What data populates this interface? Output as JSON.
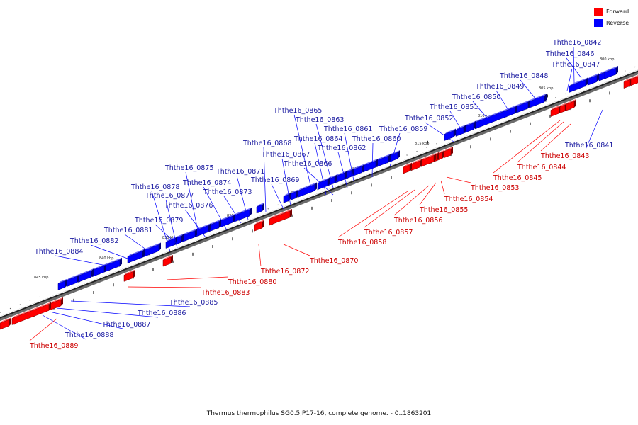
{
  "legend": {
    "forward_label": "Forward",
    "reverse_label": "Reverse",
    "forward_color": "#ff0000",
    "reverse_color": "#0000ff"
  },
  "caption": "Thermus thermophilus SG0.5JP17-16, complete genome. - 0..1863201",
  "ticks": [
    "800 kbp",
    "805 kbp",
    "810 kbp",
    "815 kbp",
    "820 kbp",
    "825 kbp",
    "830 kbp",
    "835 kbp",
    "840 kbp",
    "845 kbp"
  ],
  "labels": [
    {
      "text": "Ththe16_0842",
      "strand": "reverse"
    },
    {
      "text": "Ththe16_0846",
      "strand": "reverse"
    },
    {
      "text": "Ththe16_0847",
      "strand": "reverse"
    },
    {
      "text": "Ththe16_0848",
      "strand": "reverse"
    },
    {
      "text": "Ththe16_0849",
      "strand": "reverse"
    },
    {
      "text": "Ththe16_0850",
      "strand": "reverse"
    },
    {
      "text": "Ththe16_0851",
      "strand": "reverse"
    },
    {
      "text": "Ththe16_0852",
      "strand": "reverse"
    },
    {
      "text": "Ththe16_0865",
      "strand": "reverse"
    },
    {
      "text": "Ththe16_0863",
      "strand": "reverse"
    },
    {
      "text": "Ththe16_0861",
      "strand": "reverse"
    },
    {
      "text": "Ththe16_0859",
      "strand": "reverse"
    },
    {
      "text": "Ththe16_0864",
      "strand": "reverse"
    },
    {
      "text": "Ththe16_0860",
      "strand": "reverse"
    },
    {
      "text": "Ththe16_0868",
      "strand": "reverse"
    },
    {
      "text": "Ththe16_0862",
      "strand": "reverse"
    },
    {
      "text": "Ththe16_0867",
      "strand": "reverse"
    },
    {
      "text": "Ththe16_0866",
      "strand": "reverse"
    },
    {
      "text": "Ththe16_0875",
      "strand": "reverse"
    },
    {
      "text": "Ththe16_0871",
      "strand": "reverse"
    },
    {
      "text": "Ththe16_0869",
      "strand": "reverse"
    },
    {
      "text": "Ththe16_0874",
      "strand": "reverse"
    },
    {
      "text": "Ththe16_0878",
      "strand": "reverse"
    },
    {
      "text": "Ththe16_0873",
      "strand": "reverse"
    },
    {
      "text": "Ththe16_0877",
      "strand": "reverse"
    },
    {
      "text": "Ththe16_0876",
      "strand": "reverse"
    },
    {
      "text": "Ththe16_0879",
      "strand": "reverse"
    },
    {
      "text": "Ththe16_0881",
      "strand": "reverse"
    },
    {
      "text": "Ththe16_0882",
      "strand": "reverse"
    },
    {
      "text": "Ththe16_0884",
      "strand": "reverse"
    },
    {
      "text": "Ththe16_0841",
      "strand": "reverse"
    },
    {
      "text": "Ththe16_0885",
      "strand": "reverse"
    },
    {
      "text": "Ththe16_0886",
      "strand": "reverse"
    },
    {
      "text": "Ththe16_0887",
      "strand": "reverse"
    },
    {
      "text": "Ththe16_0888",
      "strand": "reverse"
    },
    {
      "text": "Ththe16_0843",
      "strand": "forward"
    },
    {
      "text": "Ththe16_0844",
      "strand": "forward"
    },
    {
      "text": "Ththe16_0845",
      "strand": "forward"
    },
    {
      "text": "Ththe16_0853",
      "strand": "forward"
    },
    {
      "text": "Ththe16_0854",
      "strand": "forward"
    },
    {
      "text": "Ththe16_0855",
      "strand": "forward"
    },
    {
      "text": "Ththe16_0856",
      "strand": "forward"
    },
    {
      "text": "Ththe16_0857",
      "strand": "forward"
    },
    {
      "text": "Ththe16_0858",
      "strand": "forward"
    },
    {
      "text": "Ththe16_0870",
      "strand": "forward"
    },
    {
      "text": "Ththe16_0872",
      "strand": "forward"
    },
    {
      "text": "Ththe16_0880",
      "strand": "forward"
    },
    {
      "text": "Ththe16_0883",
      "strand": "forward"
    },
    {
      "text": "Ththe16_0889",
      "strand": "forward"
    }
  ]
}
